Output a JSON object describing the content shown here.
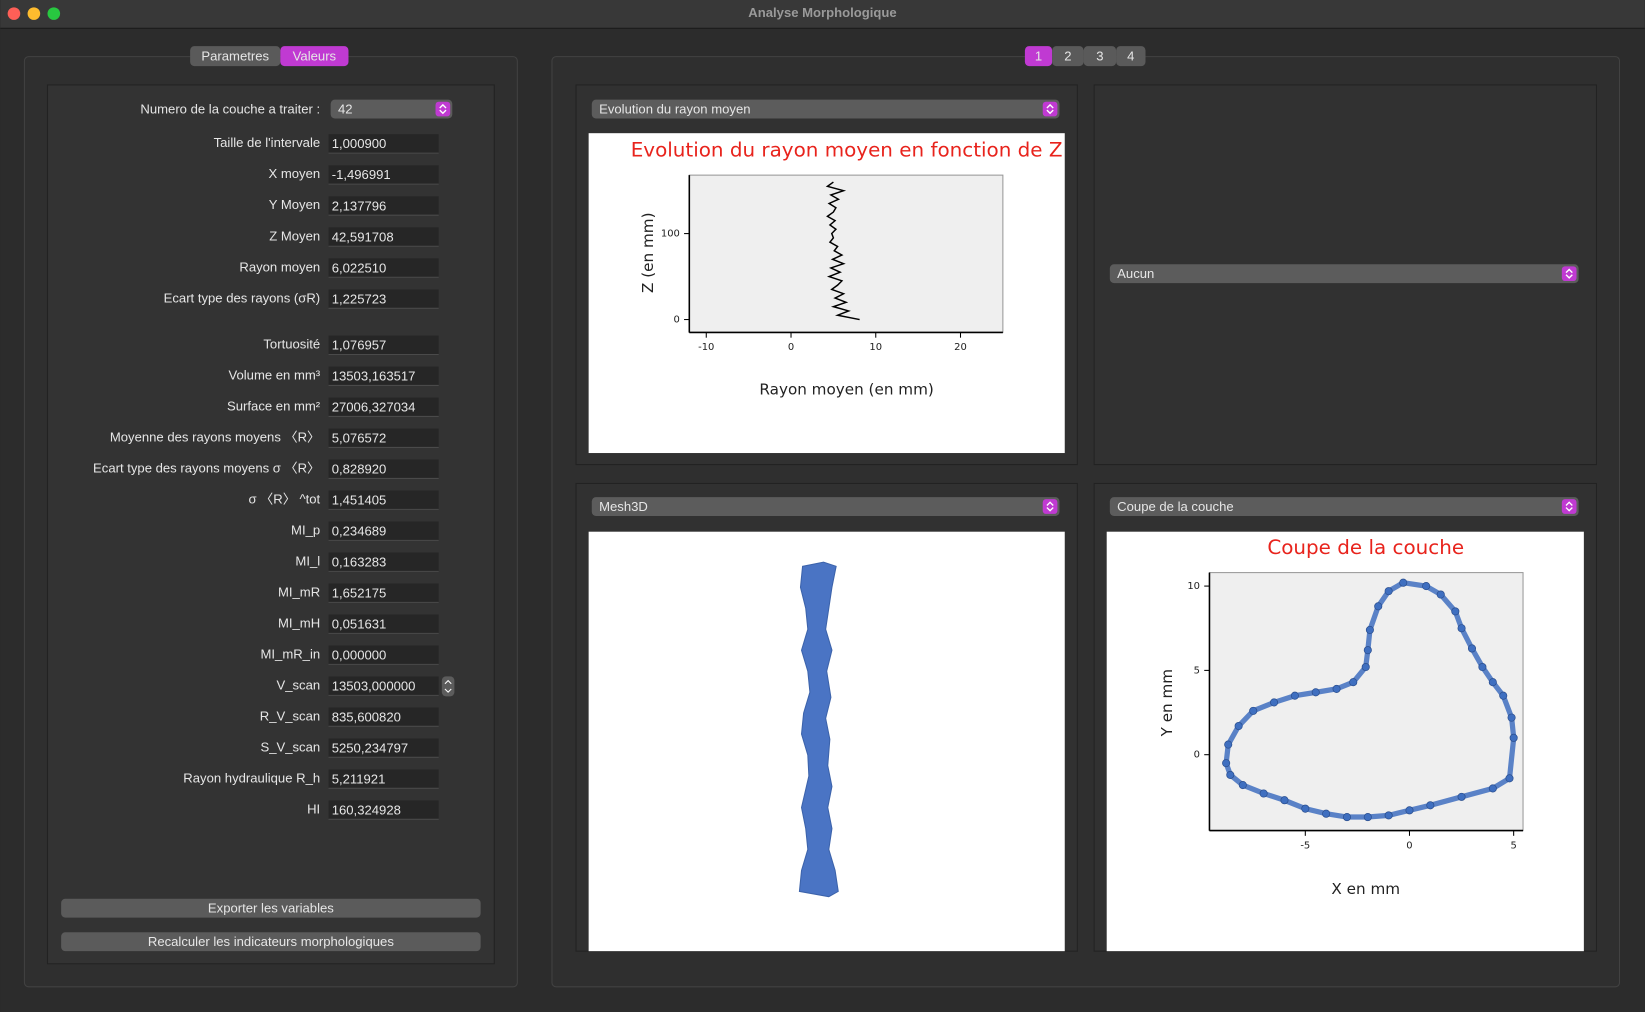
{
  "window": {
    "title": "Analyse Morphologique"
  },
  "left_panel": {
    "tabs": [
      "Parametres",
      "Valeurs"
    ],
    "active_tab": 1,
    "layer_selector": {
      "label": "Numero de la couche a traiter :",
      "value": "42"
    },
    "fields": [
      {
        "label": "Taille de l'intervale",
        "value": "1,000900"
      },
      {
        "label": "X moyen",
        "value": "-1,496991"
      },
      {
        "label": "Y Moyen",
        "value": "2,137796"
      },
      {
        "label": "Z Moyen",
        "value": "42,591708"
      },
      {
        "label": "Rayon moyen",
        "value": "6,022510"
      },
      {
        "label": "Ecart type des rayons (σR)",
        "value": "1,225723"
      },
      {
        "label": "Tortuosité",
        "value": "1,076957"
      },
      {
        "label": "Volume en mm³",
        "value": "13503,163517"
      },
      {
        "label": "Surface en mm²",
        "value": "27006,327034"
      },
      {
        "label": "Moyenne des rayons moyens  〈R〉",
        "value": "5,076572"
      },
      {
        "label": "Ecart type des rayons moyens σ 〈R〉",
        "value": "0,828920"
      },
      {
        "label": "σ 〈R〉 ^tot",
        "value": "1,451405"
      },
      {
        "label": "MI_p",
        "value": "0,234689"
      },
      {
        "label": "MI_l",
        "value": "0,163283"
      },
      {
        "label": "MI_mR",
        "value": "1,652175"
      },
      {
        "label": "MI_mH",
        "value": "0,051631"
      },
      {
        "label": "MI_mR_in",
        "value": "0,000000"
      },
      {
        "label": "V_scan",
        "value": "13503,000000"
      },
      {
        "label": "R_V_scan",
        "value": "835,600820"
      },
      {
        "label": "S_V_scan",
        "value": "5250,234797"
      },
      {
        "label": "Rayon hydraulique R_h",
        "value": "5,211921"
      },
      {
        "label": "HI",
        "value": "160,324928"
      }
    ],
    "buttons": [
      "Exporter les variables",
      "Recalculer les indicateurs morphologiques"
    ]
  },
  "right_panel": {
    "tabs": [
      "1",
      "2",
      "3",
      "4"
    ],
    "active_tab": 0,
    "views": [
      {
        "selector": "Evolution du rayon moyen",
        "chart_data": {
          "type": "line",
          "title": "Evolution du rayon moyen en fonction de Z",
          "xlabel": "Rayon moyen (en mm)",
          "ylabel": "Z (en mm)",
          "color": "#000000",
          "x": [
            8.1,
            5.5,
            6.8,
            5.0,
            6.5,
            5.2,
            6.2,
            4.8,
            5.5,
            6.0,
            4.5,
            5.8,
            4.7,
            6.2,
            4.9,
            6.0,
            5.1,
            5.5,
            4.6,
            5.0,
            4.8,
            5.3,
            4.6,
            5.2,
            4.3,
            5.0,
            5.3,
            4.5,
            5.6,
            4.7,
            6.2,
            4.3,
            5.0
          ],
          "values": [
            0,
            5,
            10,
            15,
            20,
            25,
            30,
            35,
            40,
            45,
            50,
            55,
            60,
            65,
            70,
            75,
            80,
            85,
            90,
            95,
            100,
            105,
            110,
            115,
            120,
            125,
            130,
            135,
            140,
            145,
            150,
            155,
            160
          ],
          "xlim": [
            -12,
            25
          ],
          "ylim": [
            -15,
            168
          ],
          "xticks": [
            -10,
            0,
            10,
            20
          ],
          "yticks": [
            0,
            100
          ]
        }
      },
      {
        "selector": "Aucun"
      },
      {
        "selector": "Mesh3D"
      },
      {
        "selector": "Coupe de la couche",
        "chart_data": {
          "type": "scatter",
          "title": "Coupe de la couche",
          "xlabel": "X en mm",
          "ylabel": "Y en mm",
          "color": "#3f6fc0",
          "x": [
            -0.3,
            0.8,
            1.5,
            2.2,
            2.5,
            3.0,
            3.5,
            4.0,
            4.5,
            4.9,
            5.0,
            4.8,
            4.0,
            2.5,
            1.0,
            0,
            -1.0,
            -2.0,
            -3.0,
            -4.0,
            -5.0,
            -6.0,
            -7.0,
            -8.0,
            -8.6,
            -8.8,
            -8.7,
            -8.2,
            -7.5,
            -6.5,
            -5.5,
            -4.5,
            -3.5,
            -2.7,
            -2.1,
            -2.0,
            -1.9,
            -1.5,
            -1.0
          ],
          "values": [
            10.2,
            10.0,
            9.5,
            8.5,
            7.5,
            6.3,
            5.2,
            4.3,
            3.5,
            2.2,
            1.0,
            -1.4,
            -2.0,
            -2.5,
            -3.0,
            -3.3,
            -3.6,
            -3.7,
            -3.7,
            -3.5,
            -3.2,
            -2.7,
            -2.3,
            -1.8,
            -1.2,
            -0.5,
            0.6,
            1.7,
            2.6,
            3.1,
            3.5,
            3.7,
            3.9,
            4.3,
            5.2,
            6.2,
            7.4,
            8.8,
            9.7
          ],
          "xlim": [
            -9.6,
            5.45
          ],
          "ylim": [
            -4.5,
            10.8
          ],
          "xticks": [
            -5,
            0,
            5
          ],
          "yticks": [
            0,
            5,
            10
          ]
        }
      }
    ]
  }
}
